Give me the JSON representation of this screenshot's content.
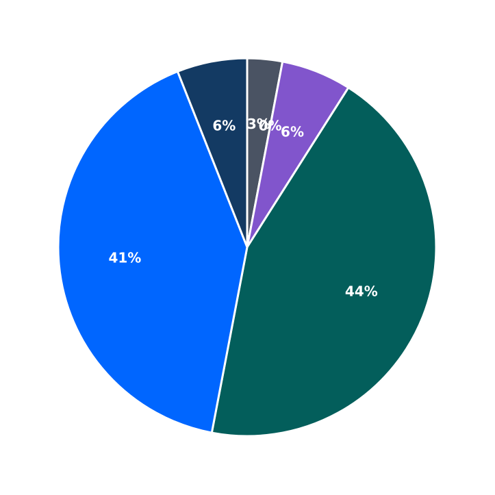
{
  "chart_data": {
    "type": "pie",
    "categories": [
      null,
      null,
      null,
      null,
      null,
      null
    ],
    "values": [
      3,
      0,
      6,
      44,
      41,
      6
    ],
    "value_labels": [
      "3%",
      "0%",
      "6%",
      "44%",
      "41%",
      "6%"
    ],
    "colors": [
      "#4a5363",
      "#e8e8e8",
      "#8155cc",
      "#035e5b",
      "#0066ff",
      "#133a63"
    ]
  }
}
